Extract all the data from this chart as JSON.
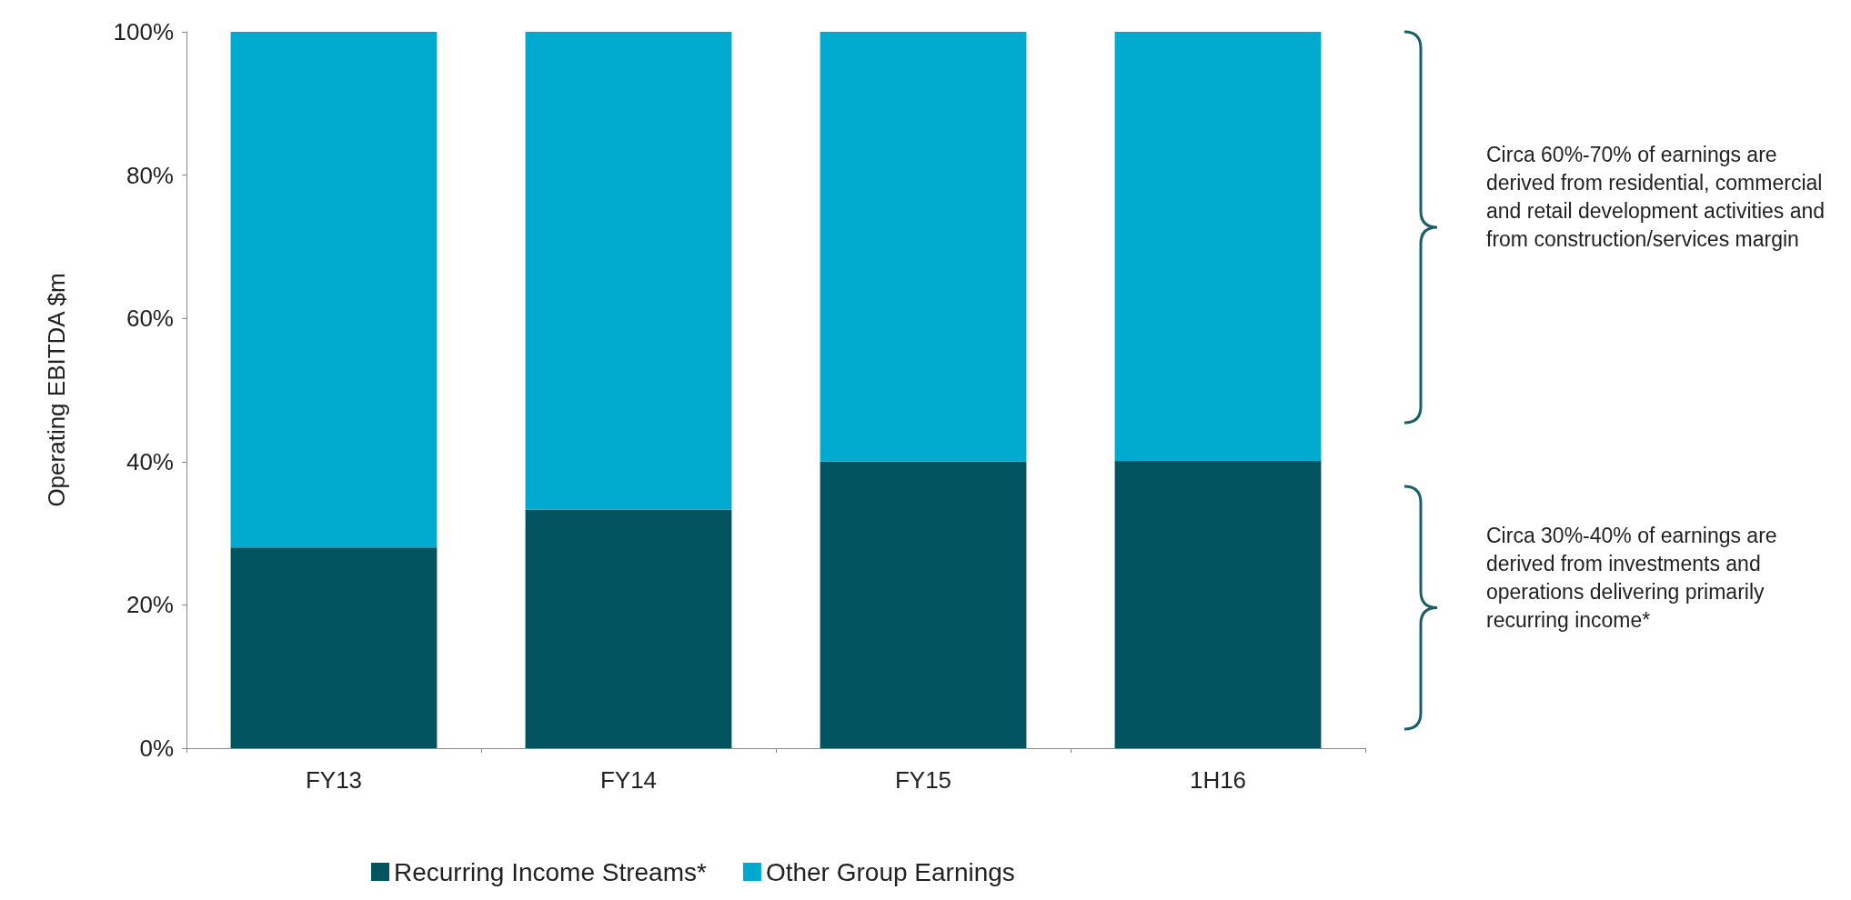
{
  "chart_data": {
    "type": "bar",
    "ylabel": "Operating EBITDA $m",
    "categories": [
      "FY13",
      "FY14",
      "FY15",
      "1H16"
    ],
    "stacked": true,
    "series": [
      {
        "name": "Recurring Income Streams*",
        "color": "#00535f",
        "values": [
          28,
          33.3,
          40,
          40.1
        ]
      },
      {
        "name": "Other Group Earnings",
        "color": "#00a9ce",
        "values": [
          72,
          66.7,
          60,
          59.9
        ]
      }
    ],
    "ylim": [
      0,
      100
    ],
    "yticks": [
      {
        "value": 0,
        "label": "0%"
      },
      {
        "value": 20,
        "label": "20%"
      },
      {
        "value": 40,
        "label": "40%"
      },
      {
        "value": 60,
        "label": "60%"
      },
      {
        "value": 80,
        "label": "80%"
      },
      {
        "value": 100,
        "label": "100%"
      }
    ],
    "grid": false,
    "legend": "bottom",
    "annotations": [
      "Circa 60%-70% of earnings are derived from residential, commercial and retail development activities and from construction/services margin",
      "Circa 30%-40% of earnings are derived from investments and operations delivering primarily recurring income*"
    ]
  }
}
